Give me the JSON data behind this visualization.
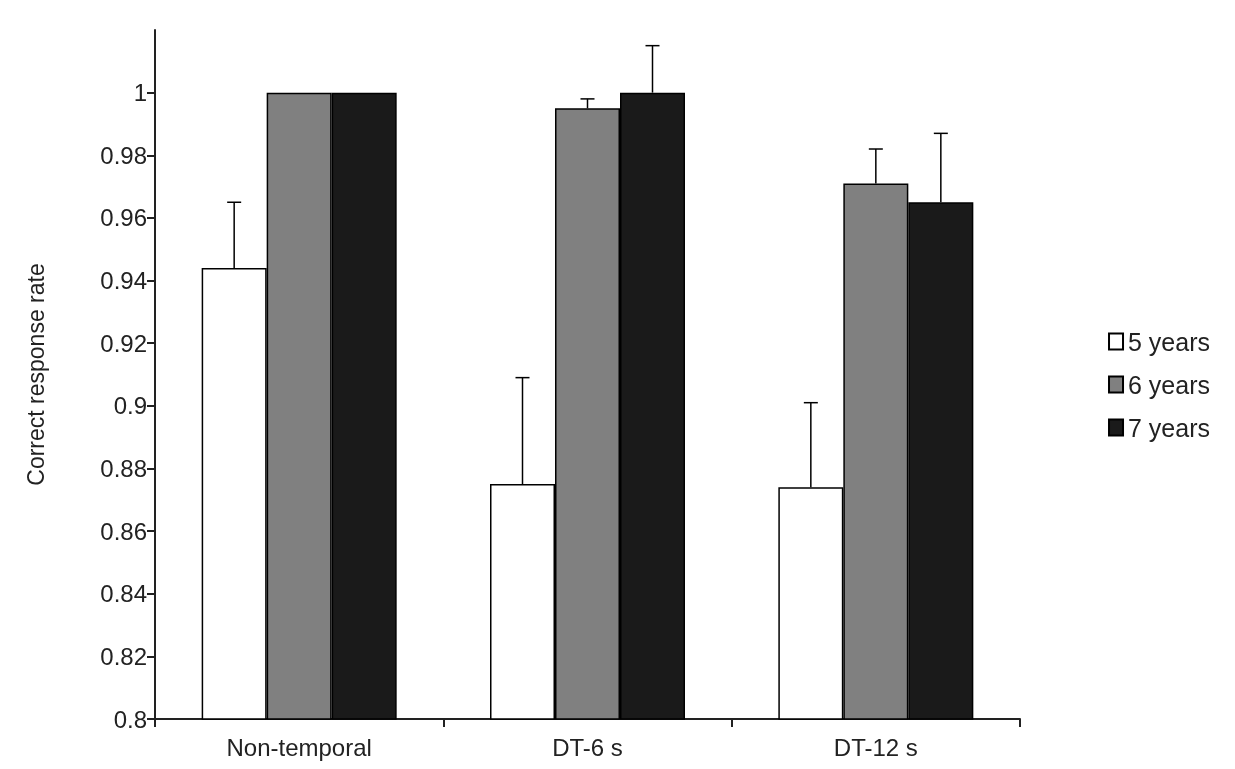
{
  "chart_data": {
    "type": "bar",
    "ylabel": "Correct response rate",
    "categories": [
      "Non-temporal",
      "DT-6 s",
      "DT-12 s"
    ],
    "series": [
      {
        "name": "5 years",
        "color": "#ffffff",
        "values": [
          0.944,
          0.875,
          0.874
        ],
        "errors": [
          [
            0.944,
            0.965
          ],
          [
            0.875,
            0.909
          ],
          [
            0.874,
            0.901
          ]
        ]
      },
      {
        "name": "6 years",
        "color": "#808080",
        "values": [
          1.0,
          0.995,
          0.971
        ],
        "errors": [
          null,
          [
            0.995,
            0.998
          ],
          [
            0.971,
            0.982
          ]
        ]
      },
      {
        "name": "7 years",
        "color": "#1a1a1a",
        "values": [
          1.0,
          1.0,
          0.965
        ],
        "errors": [
          null,
          [
            1.0,
            1.015
          ],
          [
            0.965,
            0.987
          ]
        ]
      }
    ],
    "ylim": [
      0.8,
      1.02
    ],
    "yticks": [
      0.8,
      0.82,
      0.84,
      0.86,
      0.88,
      0.9,
      0.92,
      0.94,
      0.96,
      0.98,
      1
    ],
    "grid": false,
    "legend": "right"
  }
}
